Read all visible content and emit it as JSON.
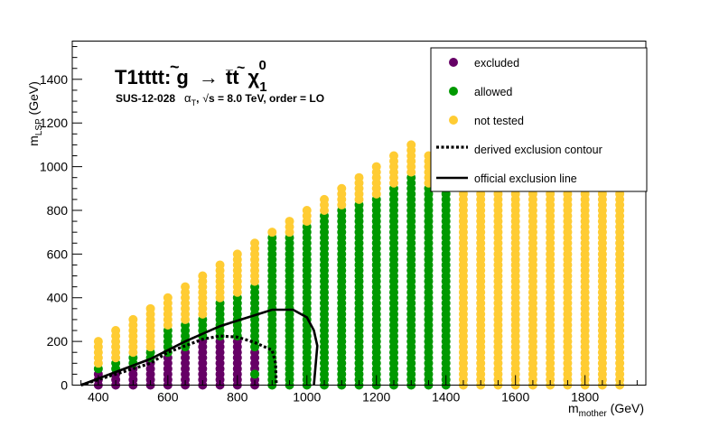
{
  "chart_data": {
    "type": "scatter",
    "title": "T1tttt: g̃ → tt̄ χ̃₁⁰",
    "title_parts": {
      "prefix": "T1tttt: ",
      "gluino": "g",
      "arrow": "→",
      "tops": "tt",
      "chi": "χ",
      "sub": "1",
      "sup": "0"
    },
    "subtitle": "SUS-12-028   αT, √s = 8.0 TeV, order = LO",
    "subtitle_parts": {
      "analysis": "SUS-12-028",
      "alpha": "α",
      "alpha_sub": "T",
      "comma": ",",
      "sqrt": "√",
      "energy": "s = 8.0 TeV, order = LO"
    },
    "xlabel": "m_mother (GeV)",
    "xlabel_parts": {
      "base": "m",
      "sub": "mother",
      "unit": " (GeV)"
    },
    "ylabel": "m_LSP (GeV)",
    "ylabel_parts": {
      "base": "m",
      "sub": "LSP",
      "unit": " (GeV)"
    },
    "xlim": [
      325,
      1975
    ],
    "ylim": [
      0,
      1575
    ],
    "xticks": [
      "400",
      "600",
      "800",
      "1000",
      "1200",
      "1400",
      "1600",
      "1800"
    ],
    "yticks": [
      "0",
      "200",
      "400",
      "600",
      "800",
      "1000",
      "1200",
      "1400"
    ],
    "grid": false,
    "legend_position": "top-right",
    "legend": [
      {
        "label": "excluded",
        "kind": "marker",
        "color": "#660066"
      },
      {
        "label": "allowed",
        "kind": "marker",
        "color": "#009900"
      },
      {
        "label": "not tested",
        "kind": "marker",
        "color": "#ffcc33"
      },
      {
        "label": "derived exclusion contour",
        "kind": "dotted"
      },
      {
        "label": "official exclusion line",
        "kind": "solid"
      }
    ],
    "colors": {
      "excluded": "#660066",
      "allowed": "#009900",
      "not_tested": "#ffcc33"
    },
    "grid_points": {
      "x_start": 400,
      "x_step": 50,
      "x_end": 1900,
      "y_step": 25,
      "excluded_top": {
        "400": 50,
        "450": 50,
        "500": 75,
        "550": 100,
        "600": 125,
        "650": 150,
        "700": 200,
        "750": 200,
        "800": 200,
        "850": 150
      },
      "allowed_top": {
        "400": 75,
        "450": 100,
        "500": 125,
        "550": 150,
        "600": 250,
        "650": 275,
        "700": 300,
        "750": 375,
        "800": 400,
        "850": 450,
        "900": 675,
        "950": 675,
        "1000": 725,
        "1050": 775,
        "1100": 800,
        "1150": 825,
        "1200": 850,
        "1250": 900,
        "1300": 950,
        "1350": 900,
        "1400": 900
      },
      "column_top": {
        "400": 200,
        "450": 250,
        "500": 300,
        "550": 350,
        "600": 400,
        "650": 450,
        "700": 500,
        "750": 550,
        "800": 600,
        "850": 650,
        "900": 700,
        "950": 750,
        "1000": 800,
        "1050": 850,
        "1100": 900,
        "1150": 950,
        "1200": 1000,
        "1250": 1050,
        "1300": 1100,
        "1350": 1050,
        "1400": 900,
        "1450": 900,
        "1500": 900,
        "1550": 900,
        "1600": 900,
        "1650": 900,
        "1700": 900,
        "1750": 900,
        "1800": 900,
        "1850": 900,
        "1900": 900
      },
      "allowed_bottom_rows": [
        0
      ],
      "extra_allowed": [
        [
          850,
          50
        ]
      ]
    },
    "derived_exclusion_contour": [
      [
        350,
        0
      ],
      [
        450,
        50
      ],
      [
        500,
        75
      ],
      [
        550,
        100
      ],
      [
        600,
        150
      ],
      [
        650,
        180
      ],
      [
        700,
        210
      ],
      [
        750,
        225
      ],
      [
        800,
        220
      ],
      [
        850,
        195
      ],
      [
        900,
        160
      ],
      [
        910,
        100
      ],
      [
        912,
        0
      ]
    ],
    "official_exclusion_line": [
      [
        350,
        0
      ],
      [
        450,
        60
      ],
      [
        550,
        120
      ],
      [
        650,
        200
      ],
      [
        750,
        270
      ],
      [
        850,
        320
      ],
      [
        900,
        345
      ],
      [
        960,
        345
      ],
      [
        1000,
        310
      ],
      [
        1020,
        250
      ],
      [
        1030,
        180
      ],
      [
        1025,
        90
      ],
      [
        1020,
        0
      ]
    ]
  }
}
